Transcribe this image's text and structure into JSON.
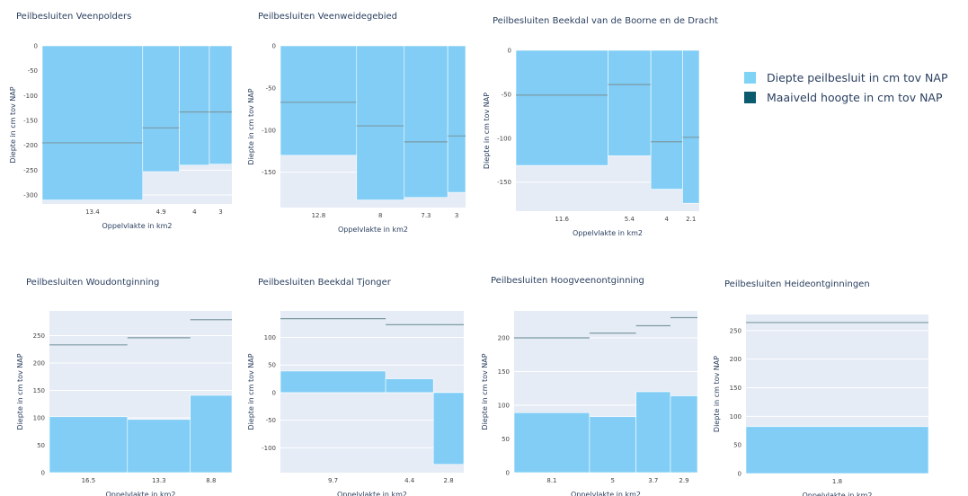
{
  "colors": {
    "plot_bg": "#e5ecf6",
    "bar": "#81cdf6",
    "maaiveld": "#7c9aa3",
    "legend_depth": "#7fd3f5",
    "legend_maaiveld": "#0b5b6e"
  },
  "legend": {
    "items": [
      {
        "label": "Diepte peilbesluit in cm tov NAP",
        "color_key": "legend_depth"
      },
      {
        "label": "Maaiveld hoogte in cm tov NAP",
        "color_key": "legend_maaiveld"
      }
    ]
  },
  "chart_data": [
    {
      "type": "bar",
      "title": "Peilbesluiten Veenpolders",
      "xlabel": "Oppelvlakte in km2",
      "ylabel": "Diepte in cm tov NAP",
      "ylim": [
        -318,
        0
      ],
      "yticks": [
        0,
        -50,
        -100,
        -150,
        -200,
        -250,
        -300
      ],
      "widths": [
        13.4,
        4.9,
        4,
        3
      ],
      "xtick_labels": [
        "13.4",
        "4.9",
        "4",
        "3"
      ],
      "values": [
        -310,
        -253,
        -240,
        -238
      ],
      "maaiveld": [
        -195,
        -165,
        -133,
        -133
      ]
    },
    {
      "type": "bar",
      "title": "Peilbesluiten Veenweidegebied",
      "xlabel": "Oppelvlakte in km2",
      "ylabel": "Diepte in cm tov NAP",
      "ylim": [
        -192,
        0
      ],
      "yticks": [
        0,
        -50,
        -100,
        -150
      ],
      "widths": [
        12.8,
        8,
        7.3,
        3
      ],
      "xtick_labels": [
        "12.8",
        "8",
        "7.3",
        "3"
      ],
      "values": [
        -130,
        -183,
        -180,
        -174
      ],
      "maaiveld": [
        -67,
        -95,
        -114,
        -107
      ]
    },
    {
      "type": "bar",
      "title": "Peilbesluiten Beekdal van de Boorne en de Dracht",
      "xlabel": "Oppelvlakte in km2",
      "ylabel": "Diepte in cm tov NAP",
      "ylim": [
        -183,
        0
      ],
      "yticks": [
        0,
        -50,
        -100,
        -150
      ],
      "widths": [
        11.6,
        5.4,
        4,
        2.1
      ],
      "xtick_labels": [
        "11.6",
        "5.4",
        "4",
        "2.1"
      ],
      "values": [
        -131,
        -120,
        -158,
        -174
      ],
      "maaiveld": [
        -51,
        -39,
        -104,
        -99
      ]
    },
    {
      "type": "bar",
      "title": "Peilbesluiten Woudontginning",
      "xlabel": "Oppelvlakte in km2",
      "ylabel": "Diepte in cm tov NAP",
      "ylim": [
        0,
        295
      ],
      "yticks": [
        0,
        50,
        100,
        150,
        200,
        250
      ],
      "widths": [
        16.5,
        13.3,
        8.8
      ],
      "xtick_labels": [
        "16.5",
        "13.3",
        "8.8"
      ],
      "values": [
        102,
        97,
        141
      ],
      "maaiveld": [
        233,
        246,
        279
      ]
    },
    {
      "type": "bar",
      "title": "Peilbesluiten Beekdal Tjonger",
      "xlabel": "Oppelvlakte in km2",
      "ylabel": "Diepte in cm tov NAP",
      "ylim": [
        -145,
        148
      ],
      "yticks": [
        100,
        50,
        0,
        -50,
        -100
      ],
      "widths": [
        9.7,
        4.4,
        2.8
      ],
      "xtick_labels": [
        "9.7",
        "4.4",
        "2.8"
      ],
      "values": [
        39,
        25,
        -130
      ],
      "maaiveld": [
        134,
        123,
        123
      ]
    },
    {
      "type": "bar",
      "title": "Peilbesluiten Hoogveenontginning",
      "xlabel": "Oppelvlakte in km2",
      "ylabel": "Diepte in cm tov NAP",
      "ylim": [
        0,
        240
      ],
      "yticks": [
        0,
        50,
        100,
        150,
        200
      ],
      "widths": [
        8.1,
        5,
        3.7,
        2.9
      ],
      "xtick_labels": [
        "8.1",
        "5",
        "3.7",
        "2.9"
      ],
      "values": [
        89,
        83,
        120,
        114
      ],
      "maaiveld": [
        200,
        207,
        218,
        230
      ]
    },
    {
      "type": "bar",
      "title": "Peilbesluiten Heideontginningen",
      "xlabel": "Oppelvlakte in km2",
      "ylabel": "Diepte in cm tov NAP",
      "ylim": [
        0,
        278
      ],
      "yticks": [
        0,
        50,
        100,
        150,
        200,
        250
      ],
      "widths": [
        1.8
      ],
      "xtick_labels": [
        "1.8"
      ],
      "values": [
        82
      ],
      "maaiveld": [
        264
      ]
    }
  ]
}
